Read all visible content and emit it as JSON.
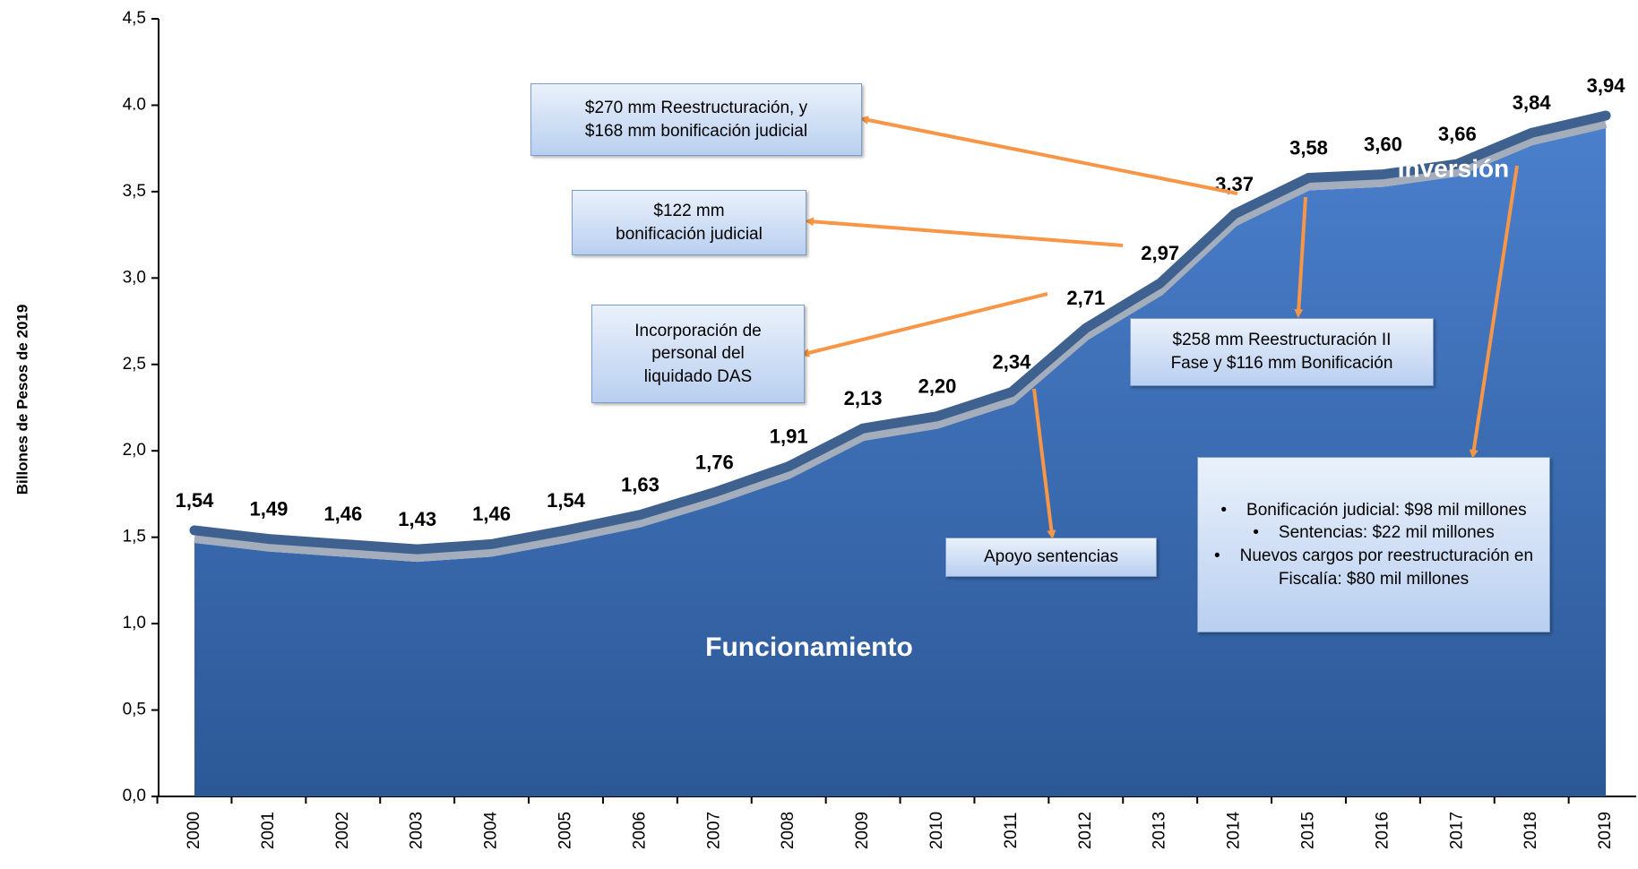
{
  "chart_data": {
    "type": "area",
    "y_axis_label": "Billones de Pesos de 2019",
    "categories": [
      "2000",
      "2001",
      "2002",
      "2003",
      "2004",
      "2005",
      "2006",
      "2007",
      "2008",
      "2009",
      "2010",
      "2011",
      "2012",
      "2013",
      "2014",
      "2015",
      "2016",
      "2017",
      "2018",
      "2019"
    ],
    "values": [
      1.54,
      1.49,
      1.46,
      1.43,
      1.46,
      1.54,
      1.63,
      1.76,
      1.91,
      2.13,
      2.2,
      2.34,
      2.71,
      2.97,
      3.37,
      3.58,
      3.6,
      3.66,
      3.84,
      3.94
    ],
    "value_labels": [
      "1,54",
      "1,49",
      "1,46",
      "1,43",
      "1,46",
      "1,54",
      "1,63",
      "1,76",
      "1,91",
      "2,13",
      "2,20",
      "2,34",
      "2,71",
      "2,97",
      "3,37",
      "3,58",
      "3,60",
      "3,66",
      "3,84",
      "3,94"
    ],
    "color": "#3b6db5",
    "ylim": [
      0,
      4.5
    ],
    "yticks": [
      {
        "value": 0,
        "label": "0,0"
      },
      {
        "value": 0.5,
        "label": "0,5"
      },
      {
        "value": 1,
        "label": "1,0"
      },
      {
        "value": 1.5,
        "label": "1,5"
      },
      {
        "value": 2,
        "label": "2,0"
      },
      {
        "value": 2.5,
        "label": "2,5"
      },
      {
        "value": 3,
        "label": "3,0"
      },
      {
        "value": 3.5,
        "label": "3,5"
      },
      {
        "value": 4,
        "label": "4.0"
      },
      {
        "value": 4.5,
        "label": "4,5"
      }
    ],
    "area_labels": [
      "Funcionamiento",
      "Inversión"
    ],
    "annotations": [
      {
        "lines": [
          "$270 mm Reestructuración, y",
          "$168 mm bonificación judicial"
        ]
      },
      {
        "lines": [
          "$122 mm",
          "bonificación judicial"
        ]
      },
      {
        "lines": [
          "Incorporación de",
          "personal del",
          "liquidado DAS"
        ]
      },
      {
        "lines": [
          "Apoyo sentencias"
        ]
      },
      {
        "lines": [
          "$258 mm Reestructuración II",
          "Fase y $116 mm Bonificación"
        ]
      },
      {
        "bullets": [
          "Bonificación judicial: $98 mil millones",
          "Sentencias: $22 mil millones",
          "Nuevos cargos por reestructuración en Fiscalía: $80 mil millones"
        ]
      }
    ]
  }
}
